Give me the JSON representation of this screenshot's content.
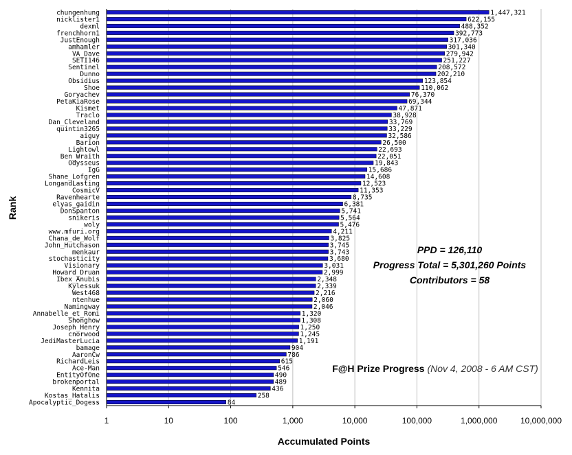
{
  "chart_data": {
    "type": "bar",
    "orientation": "horizontal",
    "x_scale": "log",
    "xlim": [
      1,
      10000000
    ],
    "x_ticks": [
      1,
      10,
      100,
      1000,
      10000,
      100000,
      1000000,
      10000000
    ],
    "x_tick_labels": [
      "1",
      "10",
      "100",
      "1,000",
      "10,000",
      "100,000",
      "1,000,000",
      "10,000,000"
    ],
    "xlabel": "Accumulated Points",
    "ylabel": "Rank",
    "grid": "vertical gridlines at decades",
    "bar_color": "#1515c8",
    "categories": [
      "chungenhung",
      "nicklister1",
      "dexml",
      "frenchhorn1",
      "JustEnough",
      "amhamler",
      "VA_Dave",
      "SETI146",
      "Sentinel",
      "Dunno",
      "Obsidius",
      "Shoe",
      "Goryachev",
      "PetaKiaRose",
      "Kismet",
      "Traclo",
      "Dan_Cleveland",
      "quintin3265",
      "aiguy",
      "Barion",
      "Lightowl",
      "Ben_Wraith",
      "Odysseus",
      "IgG",
      "Shane_Lofgren",
      "LongandLasting",
      "CosmicV",
      "Ravenhearte",
      "elyas_gaidin",
      "DonSpanton",
      "snikeris",
      "woly",
      "www.mfuri.org",
      "Chana_de_Wolf",
      "John_Hutchason",
      "menkaur",
      "stochasticity",
      "Visionary",
      "Howard_Druan",
      "Ibex_Anubis",
      "Kylessuk",
      "West468",
      "ntenhue",
      "Namingway",
      "Annabelle_et_Romi",
      "Shonghow",
      "Joseph_Henry",
      "cnorwood",
      "JediMasterLucia",
      "bamage",
      "AaronCw",
      "RichardLeis",
      "Ace-Man",
      "EntityOfOne",
      "brokenportal",
      "Kennita",
      "Kostas_Hatalis",
      "Apocalyptic_Dogess"
    ],
    "values": [
      1447321,
      622155,
      488352,
      392773,
      317036,
      301340,
      279942,
      251227,
      208572,
      202210,
      123854,
      110062,
      76370,
      69344,
      47871,
      38928,
      33769,
      33229,
      32586,
      26500,
      22693,
      22051,
      19843,
      15686,
      14608,
      12523,
      11353,
      8735,
      6381,
      5741,
      5564,
      5476,
      4211,
      3825,
      3745,
      3743,
      3680,
      3031,
      2999,
      2348,
      2339,
      2216,
      2060,
      2046,
      1320,
      1308,
      1250,
      1245,
      1191,
      904,
      786,
      615,
      546,
      490,
      489,
      436,
      258,
      84
    ],
    "value_labels": [
      "1,447,321",
      "622,155",
      "488,352",
      "392,773",
      "317,036",
      "301,340",
      "279,942",
      "251,227",
      "208,572",
      "202,210",
      "123,854",
      "110,062",
      "76,370",
      "69,344",
      "47,871",
      "38,928",
      "33,769",
      "33,229",
      "32,586",
      "26,500",
      "22,693",
      "22,051",
      "19,843",
      "15,686",
      "14,608",
      "12,523",
      "11,353",
      "8,735",
      "6,381",
      "5,741",
      "5,564",
      "5,476",
      "4,211",
      "3,825",
      "3,745",
      "3,743",
      "3,680",
      "3,031",
      "2,999",
      "2,348",
      "2,339",
      "2,216",
      "2,060",
      "2,046",
      "1,320",
      "1,308",
      "1,250",
      "1,245",
      "1,191",
      "904",
      "786",
      "615",
      "546",
      "490",
      "489",
      "436",
      "258",
      "84"
    ],
    "annotations": {
      "ppd": "PPD = 126,110",
      "progress_total": "Progress Total = 5,301,260 Points",
      "contributors": "Contributors = 58",
      "title_bold": "F@H Prize Progress",
      "title_italic": "(Nov 4, 2008 - 6 AM CST)"
    }
  }
}
